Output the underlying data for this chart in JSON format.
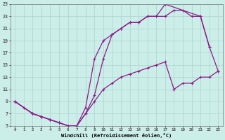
{
  "xlabel": "Windchill (Refroidissement éolien,°C)",
  "xlim": [
    -0.5,
    23.5
  ],
  "ylim": [
    5,
    25
  ],
  "xticks": [
    0,
    1,
    2,
    3,
    4,
    5,
    6,
    7,
    8,
    9,
    10,
    11,
    12,
    13,
    14,
    15,
    16,
    17,
    18,
    19,
    20,
    21,
    22,
    23
  ],
  "yticks": [
    5,
    7,
    9,
    11,
    13,
    15,
    17,
    19,
    21,
    23,
    25
  ],
  "bg_color": "#cceee8",
  "line_color": "#8b1a8b",
  "grid_color": "#aad4cc",
  "line1_x": [
    0,
    1,
    2,
    3,
    4,
    5,
    6,
    7,
    8,
    9,
    10,
    11,
    12,
    13,
    14,
    15,
    16,
    17,
    21,
    22
  ],
  "line1_y": [
    9,
    8,
    7,
    6.5,
    6,
    5.5,
    5,
    5,
    8,
    16,
    19,
    20,
    21,
    22,
    22,
    23,
    23,
    25,
    23,
    18
  ],
  "line2_x": [
    0,
    2,
    3,
    4,
    5,
    6,
    7,
    8,
    9,
    10,
    11,
    12,
    13,
    14,
    15,
    16,
    17,
    18,
    19,
    20,
    21,
    22,
    23
  ],
  "line2_y": [
    9,
    7,
    6.5,
    6,
    5.5,
    5,
    5,
    7,
    10,
    16,
    20,
    21,
    22,
    22,
    23,
    23,
    23,
    24,
    24,
    23,
    23,
    18,
    14
  ],
  "line3_x": [
    0,
    2,
    3,
    4,
    5,
    6,
    7,
    8,
    9,
    10,
    11,
    12,
    13,
    14,
    15,
    16,
    17,
    18,
    19,
    20,
    21,
    22,
    23
  ],
  "line3_y": [
    9,
    7,
    6.5,
    6,
    5.5,
    5,
    5,
    7,
    9,
    11,
    12,
    13,
    13.5,
    14,
    14.5,
    15,
    15.5,
    11,
    12,
    12,
    13,
    13,
    14
  ]
}
